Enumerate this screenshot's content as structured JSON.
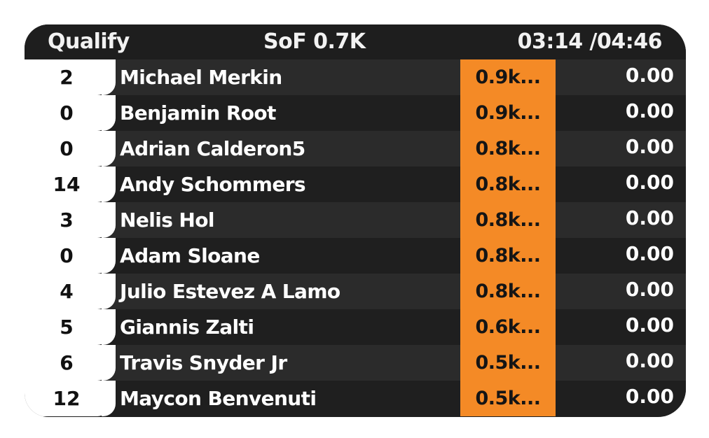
{
  "header": {
    "session": "Qualify",
    "sof": "SoF 0.7K",
    "timer": "03:14 /04:46"
  },
  "colors": {
    "panel_bg": "#1e1e1e",
    "row_light": "#2b2b2b",
    "row_dark": "#1f1f1f",
    "rating_accent": "#f48a26",
    "position_bg": "#ffffff"
  },
  "drivers": [
    {
      "number": "2",
      "name": "Michael Merkin",
      "rating": "0.9k...",
      "time": "0.00"
    },
    {
      "number": "0",
      "name": "Benjamin Root",
      "rating": "0.9k...",
      "time": "0.00"
    },
    {
      "number": "0",
      "name": "Adrian Calderon5",
      "rating": "0.8k...",
      "time": "0.00"
    },
    {
      "number": "14",
      "name": "Andy Schommers",
      "rating": "0.8k...",
      "time": "0.00"
    },
    {
      "number": "3",
      "name": "Nelis Hol",
      "rating": "0.8k...",
      "time": "0.00"
    },
    {
      "number": "0",
      "name": "Adam Sloane",
      "rating": "0.8k...",
      "time": "0.00"
    },
    {
      "number": "4",
      "name": "Julio Estevez A Lamo",
      "rating": "0.8k...",
      "time": "0.00"
    },
    {
      "number": "5",
      "name": "Giannis Zalti",
      "rating": "0.6k...",
      "time": "0.00"
    },
    {
      "number": "6",
      "name": "Travis Snyder Jr",
      "rating": "0.5k...",
      "time": "0.00"
    },
    {
      "number": "12",
      "name": "Maycon Benvenuti",
      "rating": "0.5k...",
      "time": "0.00"
    }
  ]
}
